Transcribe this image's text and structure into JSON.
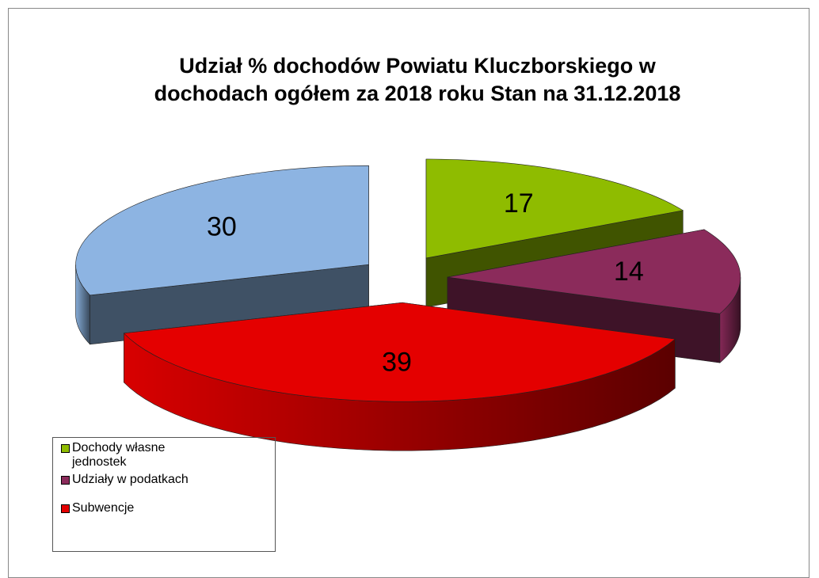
{
  "chart_data": {
    "type": "pie3d",
    "title": "Udział % dochodów Powiatu Kluczborskiego w dochodach ogółem za 2018 roku Stan na 31.12.2018",
    "categories": [
      "Dochody własne jednostek",
      "Udziały w podatkach",
      "Subwencje",
      null
    ],
    "values": [
      17,
      14,
      39,
      30
    ],
    "colors": [
      "#8fbc00",
      "#8b2b5b",
      "#e40000",
      "#8db4e2"
    ],
    "legend": "bottom-left"
  }
}
